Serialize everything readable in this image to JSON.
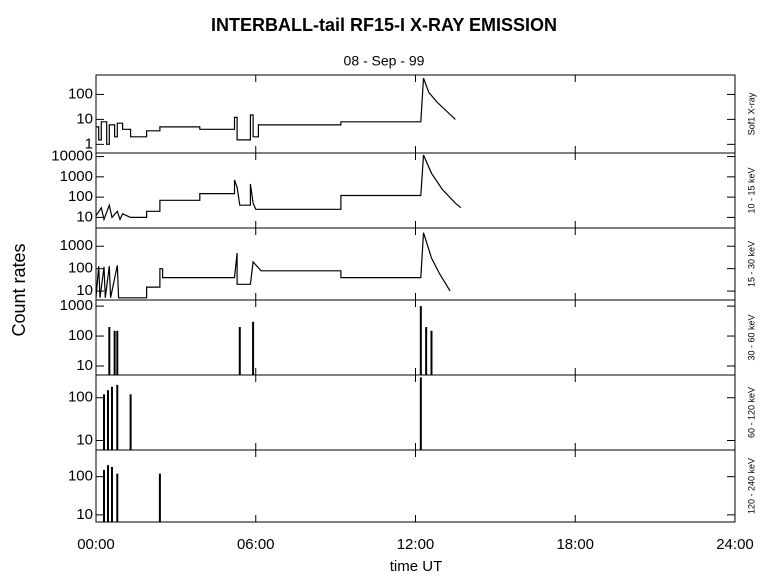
{
  "figure": {
    "title": "INTERBALL-tail  RF15-I   X-RAY  EMISSION",
    "subtitle": "08 - Sep - 99",
    "ylabel": "Count rates",
    "xlabel": "time UT",
    "xlim": [
      0,
      24
    ],
    "xticks": [
      {
        "value": 0,
        "label": "00:00"
      },
      {
        "value": 6,
        "label": "06:00"
      },
      {
        "value": 12,
        "label": "12:00"
      },
      {
        "value": 18,
        "label": "18:00"
      },
      {
        "value": 24,
        "label": "24:00"
      }
    ]
  },
  "chart_data": [
    {
      "type": "line",
      "label": "Sof1 X-ray",
      "log": true,
      "color": "#000000",
      "ylim": [
        0.45,
        600
      ],
      "yticks": [
        1,
        10,
        100
      ],
      "x": [
        0,
        0.1,
        0.1,
        0.2,
        0.2,
        0.4,
        0.4,
        0.5,
        0.5,
        0.7,
        0.7,
        0.8,
        0.8,
        1.0,
        1.0,
        1.3,
        1.3,
        1.9,
        1.9,
        2.4,
        2.4,
        3.9,
        3.9,
        5.2,
        5.2,
        5.3,
        5.3,
        5.8,
        5.8,
        5.9,
        5.9,
        6.1,
        6.1,
        9.2,
        9.2,
        12.2,
        12.3,
        12.5,
        12.8,
        13.1,
        13.5
      ],
      "values": [
        5,
        5,
        1.5,
        1.5,
        8,
        8,
        1,
        1,
        6,
        6,
        2,
        2,
        7,
        7,
        4,
        4,
        2,
        2,
        3.5,
        3.5,
        5,
        5,
        4,
        4,
        12,
        12,
        1.5,
        1.5,
        15,
        15,
        2,
        2,
        6,
        6,
        8,
        8,
        450,
        120,
        50,
        25,
        10
      ]
    },
    {
      "type": "line",
      "label": "10 - 15 keV",
      "log": true,
      "color": "#000000",
      "ylim": [
        3,
        15000
      ],
      "yticks": [
        10,
        100,
        1000,
        10000
      ],
      "x": [
        0,
        0.2,
        0.3,
        0.5,
        0.6,
        0.8,
        0.9,
        1.0,
        1.3,
        1.9,
        1.9,
        2.4,
        2.4,
        3.9,
        3.9,
        5.2,
        5.2,
        5.3,
        5.4,
        5.8,
        5.8,
        5.9,
        6.0,
        9.2,
        9.2,
        12.2,
        12.3,
        12.6,
        13.0,
        13.5,
        13.7
      ],
      "values": [
        12,
        30,
        8,
        40,
        10,
        20,
        8,
        15,
        10,
        10,
        20,
        20,
        70,
        70,
        150,
        150,
        700,
        300,
        40,
        40,
        450,
        50,
        25,
        25,
        120,
        120,
        12000,
        1500,
        250,
        50,
        30
      ]
    },
    {
      "type": "line",
      "label": "15 - 30 keV",
      "log": true,
      "color": "#000000",
      "ylim": [
        4,
        6500
      ],
      "yticks": [
        10,
        100,
        1000
      ],
      "x": [
        0,
        0.1,
        0.15,
        0.3,
        0.35,
        0.5,
        0.55,
        0.8,
        0.85,
        1.9,
        1.9,
        2.4,
        2.4,
        2.5,
        2.5,
        3.9,
        3.9,
        5.2,
        5.3,
        5.3,
        5.8,
        5.9,
        6.2,
        9.2,
        9.2,
        12.2,
        12.3,
        12.6,
        12.9,
        13.3
      ],
      "values": [
        5,
        130,
        5,
        120,
        5,
        130,
        5,
        140,
        5,
        5,
        15,
        15,
        100,
        100,
        40,
        40,
        40,
        40,
        500,
        20,
        20,
        200,
        80,
        80,
        40,
        40,
        4000,
        300,
        60,
        10
      ]
    },
    {
      "type": "spikes",
      "label": "30 - 60 keV",
      "log": true,
      "color": "#000000",
      "ylim": [
        5,
        1600
      ],
      "yticks": [
        10,
        100,
        1000
      ],
      "x": [
        0.5,
        0.7,
        0.8,
        5.4,
        5.9,
        12.2,
        12.4,
        12.6
      ],
      "values": [
        200,
        150,
        150,
        200,
        300,
        1000,
        200,
        150
      ]
    },
    {
      "type": "spikes",
      "label": "60 - 120 keV",
      "log": true,
      "color": "#000000",
      "ylim": [
        6,
        340
      ],
      "yticks": [
        10,
        100
      ],
      "x": [
        0.3,
        0.45,
        0.6,
        0.8,
        1.3,
        12.2
      ],
      "values": [
        120,
        150,
        180,
        200,
        120,
        300
      ]
    },
    {
      "type": "spikes",
      "label": "120 - 240 keV",
      "log": true,
      "color": "#000000",
      "ylim": [
        6.5,
        500
      ],
      "yticks": [
        10,
        100
      ],
      "x": [
        0.3,
        0.45,
        0.6,
        0.8,
        2.4
      ],
      "values": [
        150,
        200,
        180,
        120,
        120
      ]
    }
  ]
}
